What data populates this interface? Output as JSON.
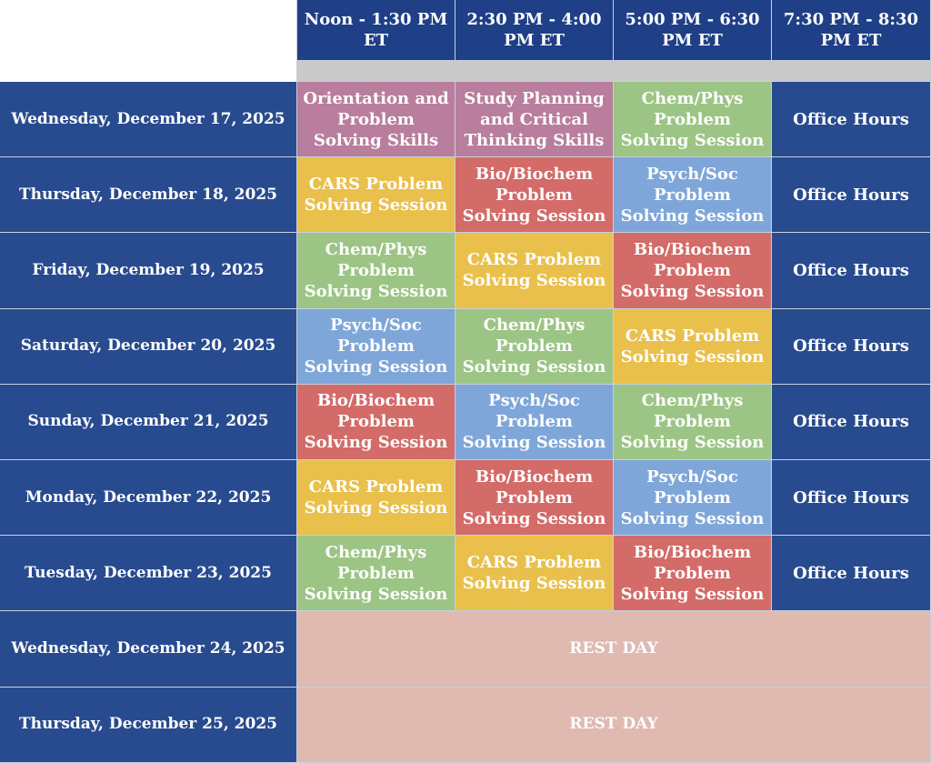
{
  "headers": {
    "slot1": "Noon - 1:30 PM ET",
    "slot2": "2:30 PM - 4:00 PM ET",
    "slot3": "5:00 PM - 6:30 PM ET",
    "slot4": "7:30 PM - 8:30 PM ET"
  },
  "rows": [
    {
      "day": "Wednesday, December 17, 2025",
      "s1": "Orientation and Problem Solving Skills",
      "s2": "Study Planning and Critical Thinking Skills",
      "s3": "Chem/Phys Problem Solving Session",
      "s4": "Office Hours"
    },
    {
      "day": "Thursday, December 18, 2025",
      "s1": "CARS Problem Solving Session",
      "s2": "Bio/Biochem Problem Solving Session",
      "s3": "Psych/Soc Problem Solving Session",
      "s4": "Office Hours"
    },
    {
      "day": "Friday, December 19, 2025",
      "s1": "Chem/Phys Problem Solving Session",
      "s2": "CARS Problem Solving Session",
      "s3": "Bio/Biochem Problem Solving Session",
      "s4": "Office Hours"
    },
    {
      "day": "Saturday, December 20, 2025",
      "s1": "Psych/Soc Problem Solving Session",
      "s2": "Chem/Phys Problem Solving Session",
      "s3": "CARS Problem Solving Session",
      "s4": "Office Hours"
    },
    {
      "day": "Sunday, December 21, 2025",
      "s1": "Bio/Biochem Problem Solving Session",
      "s2": "Psych/Soc Problem Solving Session",
      "s3": "Chem/Phys Problem Solving Session",
      "s4": "Office Hours"
    },
    {
      "day": "Monday, December 22, 2025",
      "s1": "CARS Problem Solving Session",
      "s2": "Bio/Biochem Problem Solving Session",
      "s3": "Psych/Soc Problem Solving Session",
      "s4": "Office Hours"
    },
    {
      "day": "Tuesday, December 23, 2025",
      "s1": "Chem/Phys Problem Solving Session",
      "s2": "CARS Problem Solving Session",
      "s3": "Bio/Biochem Problem Solving Session",
      "s4": "Office Hours"
    },
    {
      "day": "Wednesday, December 24, 2025",
      "rest": "REST DAY"
    },
    {
      "day": "Thursday, December 25, 2025",
      "rest": "REST DAY"
    }
  ],
  "colors": {
    "header_bg": "#1f3f86",
    "day_bg": "#284b8f",
    "spacer": "#c9c9c9",
    "orientation": "#b97d9d",
    "chem_phys": "#9cc585",
    "cars": "#e9c04c",
    "bio_biochem": "#d36b68",
    "psych_soc": "#7fa6d9",
    "rest_day": "#e0b9b1"
  }
}
